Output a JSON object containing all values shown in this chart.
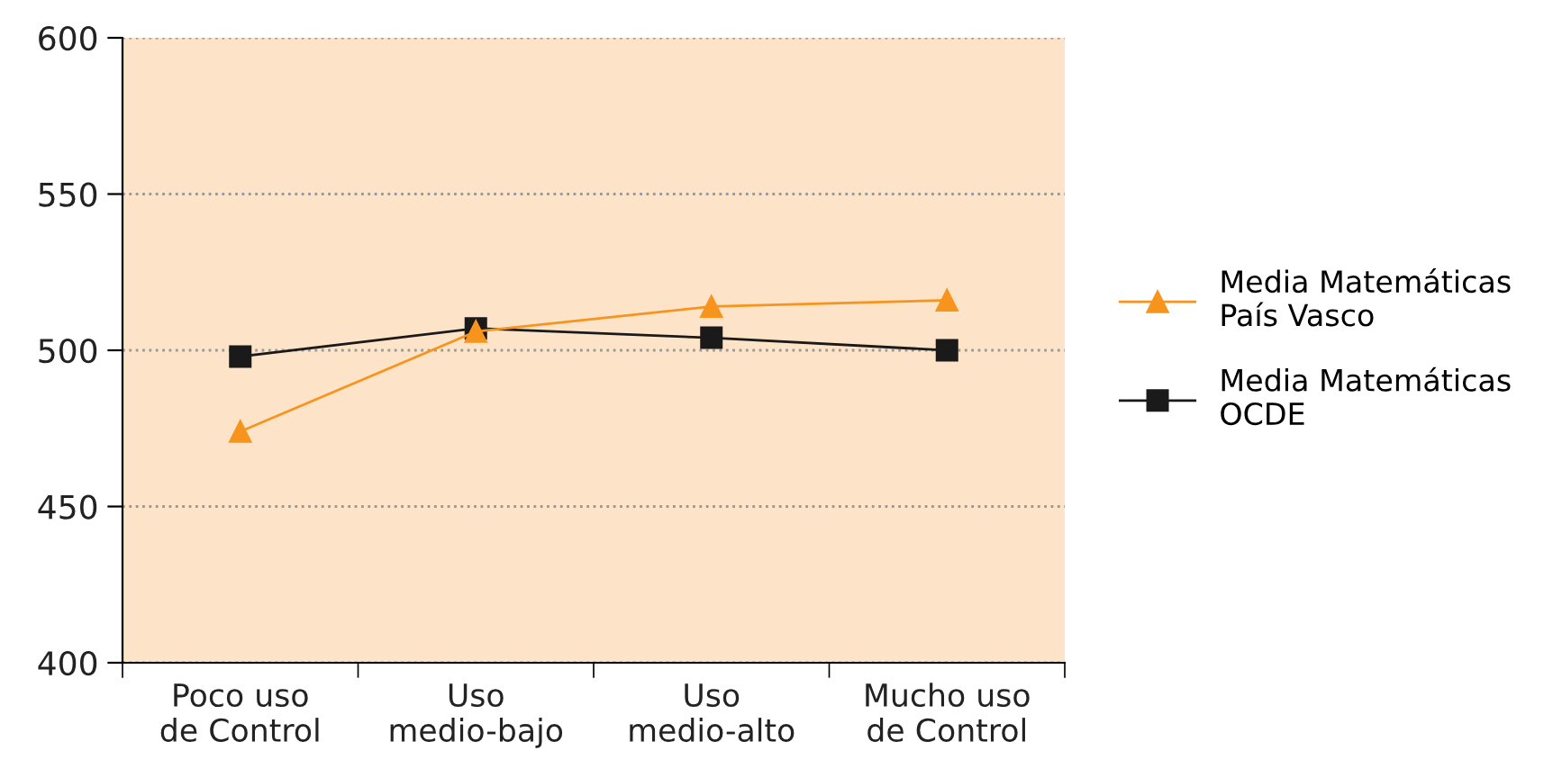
{
  "chart_data": {
    "type": "line",
    "categories": [
      "Poco uso\nde Control",
      "Uso\nmedio-bajo",
      "Uso\nmedio-alto",
      "Mucho uso\nde Control"
    ],
    "series": [
      {
        "name": "Media Matemáticas\nPaís Vasco",
        "color": "#f7941d",
        "values": [
          474,
          506,
          514,
          516
        ],
        "marker": "triangle"
      },
      {
        "name": "Media Matemáticas\nOCDE",
        "color": "#1a1a1a",
        "values": [
          498,
          507,
          504,
          500
        ],
        "marker": "square"
      }
    ],
    "ylim": [
      400,
      600
    ],
    "yticks": [
      400,
      450,
      500,
      550,
      600
    ],
    "grid": "y",
    "legend": "right",
    "line_style": "solid"
  }
}
